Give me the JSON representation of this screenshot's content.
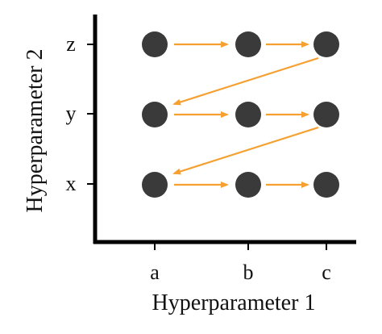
{
  "x_axis": {
    "label": "Hyperparameter 1",
    "ticks": [
      "a",
      "b",
      "c"
    ]
  },
  "y_axis": {
    "label": "Hyperparameter 2",
    "ticks": [
      "x",
      "y",
      "z"
    ]
  }
}
